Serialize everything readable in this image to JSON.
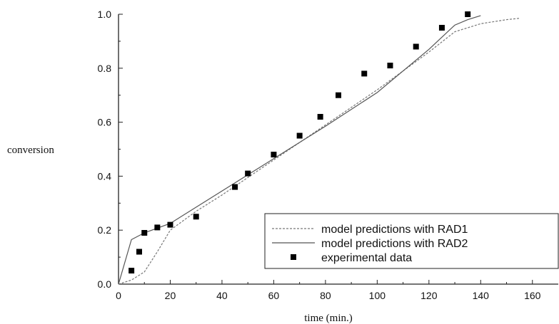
{
  "chart_data": {
    "type": "scatter",
    "xlabel": "time (min.)",
    "ylabel": "conversion",
    "xlim": [
      0,
      170
    ],
    "ylim": [
      0,
      1.0
    ],
    "x_ticks": [
      0,
      20,
      40,
      60,
      80,
      100,
      120,
      140,
      160
    ],
    "y_ticks": [
      0.0,
      0.2,
      0.4,
      0.6,
      0.8,
      1.0
    ],
    "x_tick_labels": [
      "0",
      "20",
      "40",
      "60",
      "80",
      "100",
      "120",
      "140",
      "160"
    ],
    "y_tick_labels": [
      "0.0",
      "0.2",
      "0.4",
      "0.6",
      "0.8",
      "1.0"
    ],
    "legend_position": "bottom-right",
    "series": [
      {
        "name": "model predictions with RAD1",
        "style": "dashed-line",
        "color": "#777777",
        "x": [
          0,
          5,
          10,
          15,
          20,
          30,
          40,
          60,
          80,
          100,
          120,
          130,
          140,
          150,
          155
        ],
        "y": [
          0.0,
          0.015,
          0.045,
          0.12,
          0.2,
          0.27,
          0.33,
          0.46,
          0.59,
          0.72,
          0.86,
          0.935,
          0.965,
          0.98,
          0.985
        ]
      },
      {
        "name": "model predictions with RAD2",
        "style": "solid-line",
        "color": "#555555",
        "x": [
          0,
          5,
          10,
          20,
          40,
          60,
          80,
          100,
          120,
          130,
          135,
          140
        ],
        "y": [
          0.0,
          0.165,
          0.19,
          0.225,
          0.345,
          0.465,
          0.585,
          0.71,
          0.87,
          0.96,
          0.98,
          0.995
        ]
      },
      {
        "name": "experimental data",
        "style": "square-marker",
        "color": "#000000",
        "x": [
          5,
          8,
          10,
          15,
          20,
          30,
          45,
          50,
          60,
          70,
          78,
          85,
          95,
          105,
          115,
          125,
          135
        ],
        "y": [
          0.05,
          0.12,
          0.19,
          0.21,
          0.22,
          0.25,
          0.36,
          0.41,
          0.48,
          0.55,
          0.62,
          0.7,
          0.78,
          0.81,
          0.88,
          0.95,
          1.0
        ]
      }
    ]
  }
}
